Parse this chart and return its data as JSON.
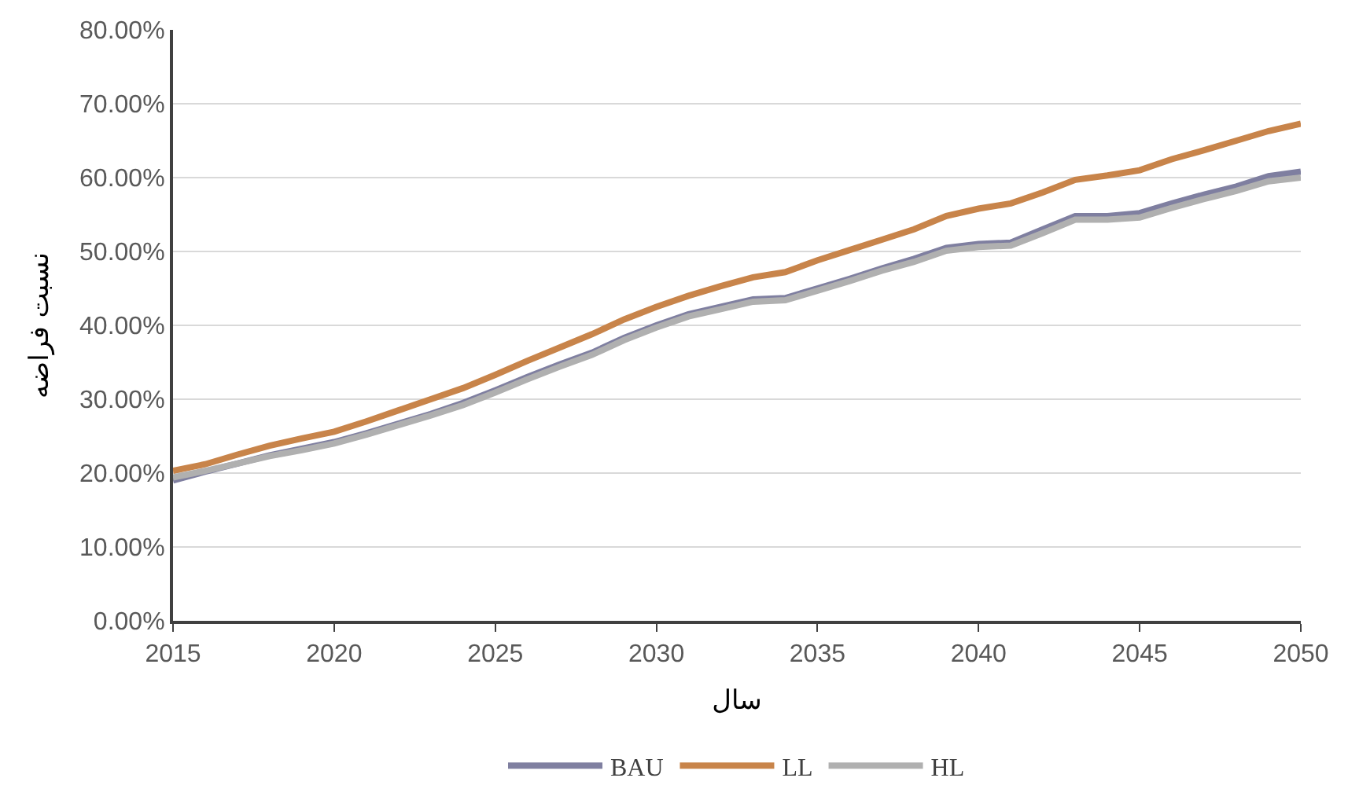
{
  "chart_data": {
    "type": "line",
    "xlabel": "سال",
    "ylabel": "نسبت فراضه",
    "x": [
      2015,
      2016,
      2017,
      2018,
      2019,
      2020,
      2021,
      2022,
      2023,
      2024,
      2025,
      2026,
      2027,
      2028,
      2029,
      2030,
      2031,
      2032,
      2033,
      2034,
      2035,
      2036,
      2037,
      2038,
      2039,
      2040,
      2041,
      2042,
      2043,
      2044,
      2045,
      2046,
      2047,
      2048,
      2049,
      2050
    ],
    "series": [
      {
        "name": "BAU",
        "color": "#7f7fa0",
        "values": [
          19.0,
          20.2,
          21.3,
          22.4,
          23.3,
          24.2,
          25.4,
          26.7,
          28.0,
          29.5,
          31.2,
          33.0,
          34.7,
          36.3,
          38.3,
          40.0,
          41.5,
          42.5,
          43.5,
          43.7,
          45.0,
          46.3,
          47.7,
          49.0,
          50.5,
          51.0,
          51.2,
          53.0,
          54.8,
          54.8,
          55.2,
          56.5,
          57.7,
          58.8,
          60.2,
          60.8
        ]
      },
      {
        "name": "LL",
        "color": "#c8844a",
        "values": [
          20.3,
          21.2,
          22.5,
          23.7,
          24.7,
          25.6,
          27.0,
          28.5,
          30.0,
          31.5,
          33.3,
          35.2,
          37.0,
          38.8,
          40.8,
          42.5,
          44.0,
          45.3,
          46.5,
          47.2,
          48.8,
          50.2,
          51.6,
          53.0,
          54.8,
          55.8,
          56.5,
          58.0,
          59.7,
          60.3,
          61.0,
          62.5,
          63.7,
          65.0,
          66.3,
          67.3
        ]
      },
      {
        "name": "HL",
        "color": "#b0b0b0",
        "values": [
          19.4,
          20.3,
          21.3,
          22.3,
          23.1,
          24.0,
          25.2,
          26.5,
          27.8,
          29.2,
          30.9,
          32.7,
          34.4,
          36.0,
          38.0,
          39.7,
          41.2,
          42.2,
          43.2,
          43.4,
          44.7,
          46.0,
          47.4,
          48.6,
          50.1,
          50.6,
          50.8,
          52.5,
          54.3,
          54.3,
          54.6,
          55.9,
          57.1,
          58.2,
          59.5,
          60.0
        ]
      }
    ],
    "xlim": [
      2015,
      2050
    ],
    "xticks": [
      2015,
      2020,
      2025,
      2030,
      2035,
      2040,
      2045,
      2050
    ],
    "ylim": [
      0,
      80
    ],
    "yticks": [
      {
        "value": 0,
        "label": "0.00%"
      },
      {
        "value": 10,
        "label": "10.00%"
      },
      {
        "value": 20,
        "label": "20.00%"
      },
      {
        "value": 30,
        "label": "30.00%"
      },
      {
        "value": 40,
        "label": "40.00%"
      },
      {
        "value": 50,
        "label": "50.00%"
      },
      {
        "value": 60,
        "label": "60.00%"
      },
      {
        "value": 70,
        "label": "70.00%"
      },
      {
        "value": 80,
        "label": "80.00%"
      }
    ],
    "grid": "y",
    "legend": "bottom",
    "marker": "none",
    "line_style": "solid"
  }
}
